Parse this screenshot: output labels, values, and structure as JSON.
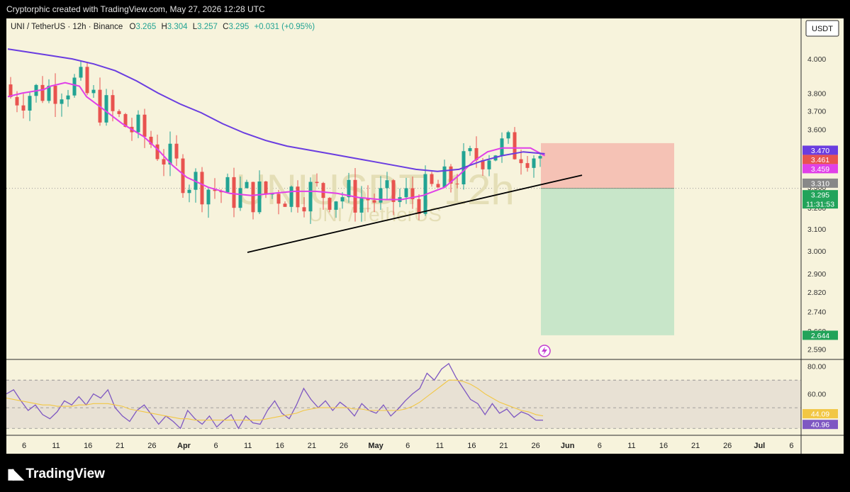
{
  "header": {
    "credit": "Cryptorphic created with TradingView.com, May 27, 2026 12:28 UTC"
  },
  "footer": {
    "brand": "TradingView"
  },
  "legend": {
    "symbol": "UNI / TetherUS · 12h · Binance",
    "o_label": "O",
    "o_value": "3.265",
    "h_label": "H",
    "h_value": "3.304",
    "l_label": "L",
    "l_value": "3.257",
    "c_label": "C",
    "c_value": "3.295",
    "change": "+0.031 (+0.95%)"
  },
  "watermark": {
    "ticker": "UNIUSDT, 12h",
    "name": "UNI / TetherUS"
  },
  "currency": "USDT",
  "colors": {
    "up": "#22a393",
    "down": "#e8534f",
    "ma_fast": "#e040e8",
    "ma_slow": "#6a3de0",
    "rsi": "#7e57c2",
    "rsi_ma": "#f2c744",
    "stop_zone": "#f5b8ae",
    "target_zone": "#bfe3c6",
    "trendline": "#000000",
    "background": "#f7f3dc"
  },
  "chart_data": [
    {
      "type": "candlestick",
      "title": "UNI / TetherUS · 12h · Binance",
      "ylim": [
        2.55,
        4.25
      ],
      "yscale": "log",
      "y_ticks": [
        "4.000",
        "3.800",
        "3.700",
        "3.600",
        "3.500",
        "3.400",
        "3.300",
        "3.200",
        "3.100",
        "3.000",
        "2.900",
        "2.820",
        "2.740",
        "2.660",
        "2.590"
      ],
      "x_ticks": [
        "6",
        "11",
        "16",
        "21",
        "26",
        "Apr",
        "6",
        "11",
        "16",
        "21",
        "26",
        "May",
        "6",
        "11",
        "16",
        "21",
        "26",
        "Jun",
        "6",
        "11",
        "16",
        "21",
        "26",
        "Jul",
        "6"
      ],
      "price_markers": [
        {
          "value": "3.470",
          "color": "#6a3de0"
        },
        {
          "value": "3.461",
          "color": "#e8534f"
        },
        {
          "value": "3.459",
          "color": "#e040e8"
        },
        {
          "value": "3.310",
          "color": "#888888"
        },
        {
          "value": "3.295",
          "color": "#22a35a",
          "countdown": "11:31:53"
        },
        {
          "value": "2.644",
          "color": "#22a35a"
        }
      ],
      "position": {
        "entry": 3.295,
        "stop": 3.47,
        "target": 2.644
      },
      "trendline": {
        "from": {
          "date": "Apr 10",
          "price": 3.0
        },
        "to": {
          "date": "May 28",
          "price": 3.35
        }
      },
      "moving_averages": [
        {
          "color": "#e040e8",
          "last": 3.459,
          "points": [
            [
              0,
              3.78
            ],
            [
              2,
              3.8
            ],
            [
              5,
              3.82
            ],
            [
              6,
              3.84
            ],
            [
              8,
              3.86
            ],
            [
              10,
              3.84
            ],
            [
              11,
              3.78
            ],
            [
              13,
              3.72
            ],
            [
              16,
              3.63
            ],
            [
              19,
              3.56
            ],
            [
              21,
              3.49
            ],
            [
              23,
              3.41
            ],
            [
              25,
              3.35
            ],
            [
              28,
              3.3
            ],
            [
              31,
              3.27
            ],
            [
              34,
              3.26
            ],
            [
              37,
              3.27
            ],
            [
              40,
              3.28
            ],
            [
              43,
              3.28
            ],
            [
              46,
              3.27
            ],
            [
              49,
              3.25
            ],
            [
              52,
              3.24
            ],
            [
              55,
              3.24
            ],
            [
              58,
              3.26
            ],
            [
              61,
              3.3
            ],
            [
              63,
              3.36
            ],
            [
              65,
              3.43
            ],
            [
              67,
              3.48
            ],
            [
              69,
              3.5
            ],
            [
              71,
              3.5
            ],
            [
              73,
              3.5
            ],
            [
              74,
              3.48
            ],
            [
              75,
              3.46
            ]
          ]
        },
        {
          "color": "#6a3de0",
          "last": 3.47,
          "points": [
            [
              0,
              4.06
            ],
            [
              3,
              4.04
            ],
            [
              6,
              4.02
            ],
            [
              9,
              4.0
            ],
            [
              12,
              3.97
            ],
            [
              15,
              3.93
            ],
            [
              18,
              3.87
            ],
            [
              21,
              3.8
            ],
            [
              24,
              3.74
            ],
            [
              27,
              3.69
            ],
            [
              30,
              3.63
            ],
            [
              33,
              3.58
            ],
            [
              36,
              3.54
            ],
            [
              39,
              3.51
            ],
            [
              42,
              3.49
            ],
            [
              45,
              3.47
            ],
            [
              48,
              3.45
            ],
            [
              51,
              3.43
            ],
            [
              54,
              3.41
            ],
            [
              57,
              3.39
            ],
            [
              60,
              3.38
            ],
            [
              63,
              3.39
            ],
            [
              66,
              3.43
            ],
            [
              69,
              3.46
            ],
            [
              72,
              3.48
            ],
            [
              75,
              3.47
            ]
          ]
        }
      ]
    },
    {
      "type": "line",
      "title": "RSI",
      "ylim": [
        30,
        85
      ],
      "y_ticks": [
        "80.00",
        "60.00"
      ],
      "band": [
        35,
        70
      ],
      "series": [
        {
          "color": "#7e57c2",
          "last": "40.96",
          "values": [
            60,
            63,
            55,
            48,
            52,
            45,
            42,
            47,
            55,
            52,
            58,
            52,
            60,
            57,
            63,
            50,
            44,
            40,
            48,
            52,
            45,
            38,
            44,
            40,
            35,
            48,
            42,
            38,
            44,
            36,
            41,
            45,
            35,
            44,
            39,
            38,
            48,
            55,
            46,
            42,
            52,
            64,
            56,
            50,
            55,
            48,
            54,
            50,
            44,
            53,
            48,
            46,
            52,
            44,
            49,
            55,
            60,
            64,
            75,
            70,
            78,
            82,
            72,
            64,
            56,
            53,
            45,
            53,
            46,
            49,
            43,
            47,
            45,
            41,
            40.96
          ]
        },
        {
          "color": "#f2c744",
          "last": "44.09",
          "values": [
            57,
            56,
            55,
            54,
            53,
            52,
            52,
            51,
            51,
            51,
            52,
            52,
            53,
            53,
            53,
            52,
            51,
            49,
            48,
            47,
            46,
            45,
            44,
            43,
            42,
            42,
            41,
            41,
            41,
            41,
            41,
            41,
            41,
            41,
            41,
            41,
            42,
            43,
            44,
            45,
            46,
            48,
            49,
            50,
            50,
            50,
            50,
            50,
            49,
            49,
            48,
            48,
            48,
            48,
            48,
            49,
            51,
            54,
            58,
            62,
            66,
            70,
            70,
            69,
            67,
            64,
            60,
            57,
            54,
            52,
            50,
            48,
            47,
            45,
            44.09
          ]
        }
      ]
    }
  ]
}
